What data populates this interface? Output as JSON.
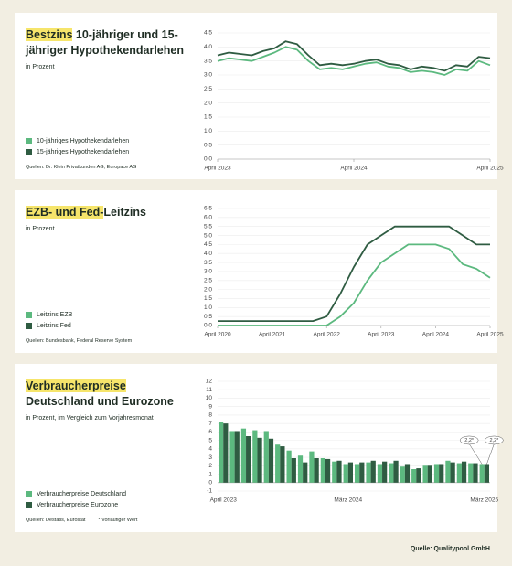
{
  "chart_data": [
    {
      "type": "line",
      "title_highlight": "Bestzins",
      "title": "10-jähriger und 15-jähriger Hypothekendarlehen",
      "subtitle": "in Prozent",
      "source": "Quellen: Dr. Klein Privatkunden AG, Europace AG",
      "categories": [
        "April 2023",
        null,
        null,
        null,
        null,
        null,
        null,
        null,
        null,
        null,
        null,
        null,
        "April 2024",
        null,
        null,
        null,
        null,
        null,
        null,
        null,
        null,
        null,
        null,
        null,
        "April 2025"
      ],
      "series": [
        {
          "name": "10-jähriges Hypothekendarlehen",
          "color": "#5cb97f",
          "values": [
            3.5,
            3.6,
            3.55,
            3.5,
            3.65,
            3.8,
            4.0,
            3.9,
            3.5,
            3.2,
            3.25,
            3.2,
            3.3,
            3.4,
            3.45,
            3.3,
            3.25,
            3.1,
            3.15,
            3.1,
            3.0,
            3.2,
            3.15,
            3.5,
            3.35
          ]
        },
        {
          "name": "15-jähriges Hypothekendarlehen",
          "color": "#2f5c42",
          "values": [
            3.7,
            3.8,
            3.75,
            3.7,
            3.85,
            3.95,
            4.2,
            4.1,
            3.7,
            3.35,
            3.4,
            3.35,
            3.4,
            3.5,
            3.55,
            3.4,
            3.35,
            3.2,
            3.3,
            3.25,
            3.15,
            3.35,
            3.3,
            3.65,
            3.6
          ]
        }
      ],
      "ylim": [
        0,
        4.5
      ],
      "yticks": [
        {
          "value": 0,
          "label": "0.0"
        },
        0.5,
        {
          "value": 1,
          "label": "1.0"
        },
        1.5,
        {
          "value": 2,
          "label": "2.0"
        },
        2.5,
        {
          "value": 3,
          "label": "3.0"
        },
        3.5,
        {
          "value": 4,
          "label": "4.0"
        },
        4.5
      ],
      "grid": true
    },
    {
      "type": "line",
      "title_highlight": "EZB- und Fed-",
      "title": "Leitzins",
      "subtitle": "in Prozent",
      "source": "Quellen: Bundesbank, Federal Reserve System",
      "categories": [
        "April 2020",
        null,
        null,
        null,
        "April 2021",
        null,
        null,
        null,
        "April 2022",
        null,
        null,
        null,
        "April 2023",
        null,
        null,
        null,
        "April 2024",
        null,
        null,
        null,
        "April 2025"
      ],
      "series": [
        {
          "name": "Leitzins EZB",
          "color": "#5cb97f",
          "values": [
            0,
            0,
            0,
            0,
            0,
            0,
            0,
            0,
            0,
            0.5,
            1.25,
            2.5,
            3.5,
            4.0,
            4.5,
            4.5,
            4.5,
            4.25,
            3.4,
            3.15,
            2.65
          ]
        },
        {
          "name": "Leitzins Fed",
          "color": "#2f5c42",
          "values": [
            0.25,
            0.25,
            0.25,
            0.25,
            0.25,
            0.25,
            0.25,
            0.25,
            0.5,
            1.75,
            3.25,
            4.5,
            5.0,
            5.5,
            5.5,
            5.5,
            5.5,
            5.5,
            5.0,
            4.5,
            4.5
          ]
        }
      ],
      "ylim": [
        0,
        6.5
      ],
      "yticks": [
        {
          "value": 0,
          "label": "0.0"
        },
        0.5,
        {
          "value": 1,
          "label": "1.0"
        },
        1.5,
        {
          "value": 2,
          "label": "2.0"
        },
        2.5,
        {
          "value": 3,
          "label": "3.0"
        },
        3.5,
        {
          "value": 4,
          "label": "4.0"
        },
        4.5,
        {
          "value": 5,
          "label": "5.0"
        },
        5.5,
        {
          "value": 6,
          "label": "6.0"
        },
        6.5
      ],
      "grid": true
    },
    {
      "type": "bar",
      "title_highlight": "Verbraucherpreise",
      "title": "Deutschland und Eurozone",
      "subtitle": "in Prozent, im Vergleich zum Vorjahresmonat",
      "source": "Quellen: Destatis, Eurostat",
      "note": "* Vorläufiger Wert",
      "categories": [
        "April 2023",
        null,
        null,
        null,
        null,
        null,
        null,
        null,
        null,
        null,
        null,
        "März 2024",
        null,
        null,
        null,
        null,
        null,
        null,
        null,
        null,
        null,
        null,
        null,
        "März 2025"
      ],
      "series": [
        {
          "name": "Verbraucherpreise Deutschland",
          "color": "#5cb97f",
          "values": [
            7.2,
            6.1,
            6.4,
            6.2,
            6.1,
            4.5,
            3.8,
            3.2,
            3.7,
            2.9,
            2.5,
            2.2,
            2.2,
            2.4,
            2.2,
            2.3,
            1.9,
            1.6,
            2.0,
            2.2,
            2.6,
            2.3,
            2.3,
            2.2
          ]
        },
        {
          "name": "Verbraucherpreise Eurozone",
          "color": "#2f5c42",
          "values": [
            7.0,
            6.1,
            5.5,
            5.3,
            5.2,
            4.3,
            2.9,
            2.4,
            2.9,
            2.8,
            2.6,
            2.4,
            2.4,
            2.6,
            2.5,
            2.6,
            2.2,
            1.7,
            2.0,
            2.2,
            2.4,
            2.5,
            2.3,
            2.2
          ]
        }
      ],
      "annotations": [
        "2,2*",
        "2,2*"
      ],
      "ylim": [
        -1,
        12
      ],
      "yticks": [
        -1,
        0,
        1,
        2,
        3,
        4,
        5,
        6,
        7,
        8,
        9,
        10,
        11,
        12
      ],
      "grid": true
    }
  ],
  "footer": "Quelle: Qualitypool GmbH"
}
